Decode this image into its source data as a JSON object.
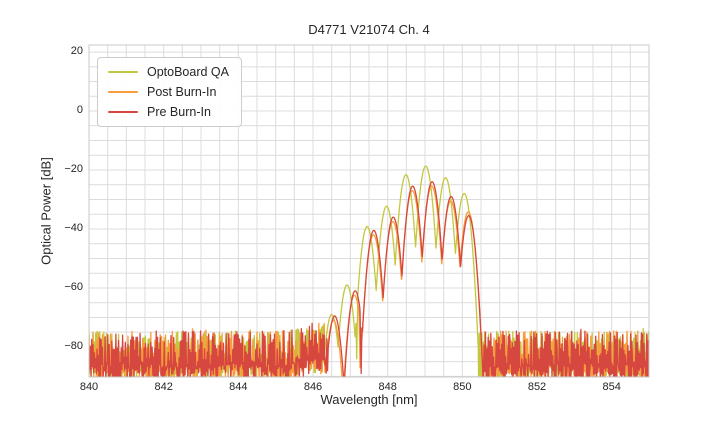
{
  "chart_data": {
    "type": "line",
    "title": "D4771 V21074 Ch. 4",
    "xlabel": "Wavelength [nm]",
    "ylabel": "Optical Power [dB]",
    "xlim": [
      840,
      855
    ],
    "ylim": [
      -90.2,
      22.4
    ],
    "x_ticks": [
      840,
      842,
      844,
      846,
      848,
      850,
      852,
      854
    ],
    "x_tick_labels": [
      "840",
      "842",
      "844",
      "846",
      "848",
      "850",
      "852",
      "854"
    ],
    "y_ticks": [
      20,
      0,
      -20,
      -40,
      -60,
      -80
    ],
    "y_tick_labels": [
      "20",
      "0",
      "−20",
      "−40",
      "−60",
      "−80"
    ],
    "grid": {
      "on": true,
      "x_step_nm": 0.5,
      "y_step_db": 5,
      "color": "#dcdcdc"
    },
    "spine_color": "#c8c8c8",
    "legend": {
      "position": "upper left"
    },
    "mode_shape": {
      "width_nm": 0.26,
      "falloff_db": 25
    },
    "noise": {
      "top_db": -74.6,
      "bottom_db": -92,
      "alternating": true
    },
    "series": [
      {
        "name": "OptoBoard QA",
        "color": "#c3c73e",
        "seed": 101,
        "band": [
          846.3,
          850.43
        ],
        "modes": [
          [
            846.5,
            -69.0
          ],
          [
            846.91,
            -59.0
          ],
          [
            847.45,
            -39.2
          ],
          [
            847.97,
            -32.3
          ],
          [
            848.49,
            -21.6
          ],
          [
            849.02,
            -18.7
          ],
          [
            849.55,
            -22.6
          ],
          [
            850.05,
            -28.0
          ]
        ],
        "notches": [
          [
            846.69,
            -80
          ],
          [
            847.17,
            -84
          ]
        ]
      },
      {
        "name": "Post Burn-In",
        "color": "#f89c3c",
        "seed": 202,
        "band": [
          846.37,
          850.54
        ],
        "modes": [
          [
            846.55,
            -71.0
          ],
          [
            847.11,
            -62.5
          ],
          [
            847.62,
            -42.0
          ],
          [
            848.14,
            -37.5
          ],
          [
            848.66,
            -27.0
          ],
          [
            849.18,
            -25.5
          ],
          [
            849.69,
            -30.5
          ],
          [
            850.16,
            -34.2
          ]
        ],
        "notches": [
          [
            846.78,
            -89
          ],
          [
            847.26,
            -87
          ]
        ]
      },
      {
        "name": "Pre Burn-In",
        "color": "#d6473f",
        "seed": 303,
        "band": [
          846.4,
          850.56
        ],
        "modes": [
          [
            846.58,
            -69.5
          ],
          [
            847.13,
            -61.0
          ],
          [
            847.63,
            -40.5
          ],
          [
            848.15,
            -36.0
          ],
          [
            848.67,
            -25.5
          ],
          [
            849.19,
            -24.0
          ],
          [
            849.7,
            -29.0
          ],
          [
            850.17,
            -35.5
          ]
        ],
        "notches": [
          [
            846.84,
            -91
          ],
          [
            847.29,
            -89
          ]
        ]
      }
    ]
  }
}
